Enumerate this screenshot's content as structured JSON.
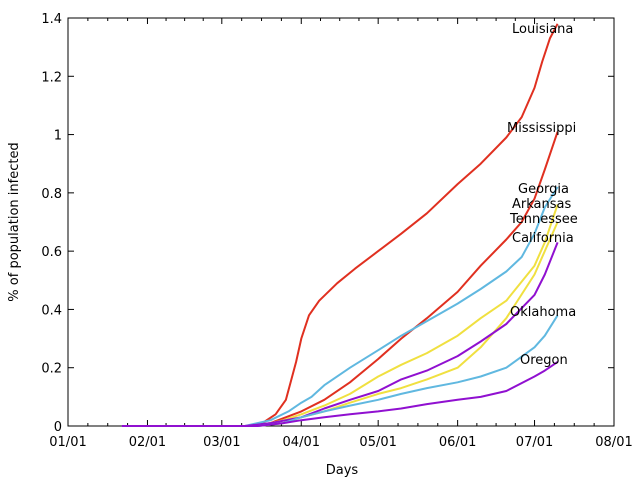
{
  "chart_data": {
    "type": "line",
    "title": "",
    "xlabel": "Days",
    "ylabel": "% of population infected",
    "xlim": [
      "01/01",
      "08/01"
    ],
    "ylim": [
      0,
      1.4
    ],
    "x_ticks": [
      "01/01",
      "02/01",
      "03/01",
      "04/01",
      "05/01",
      "06/01",
      "07/01",
      "08/01"
    ],
    "y_ticks": [
      0,
      0.2,
      0.4,
      0.6,
      0.8,
      1,
      1.2,
      1.4
    ],
    "y_tick_labels": [
      "0",
      "0.2",
      "0.4",
      "0.6",
      "0.8",
      "1",
      "1.2",
      "1.4"
    ],
    "grid": false,
    "legend": "labels at line ends",
    "series": [
      {
        "name": "Louisiana",
        "color": "#e03020",
        "points": [
          [
            "01/22",
            0
          ],
          [
            "03/10",
            0
          ],
          [
            "03/16",
            0.005
          ],
          [
            "03/22",
            0.04
          ],
          [
            "03/26",
            0.09
          ],
          [
            "03/30",
            0.22
          ],
          [
            "04/01",
            0.3
          ],
          [
            "04/04",
            0.38
          ],
          [
            "04/08",
            0.43
          ],
          [
            "04/15",
            0.49
          ],
          [
            "04/22",
            0.54
          ],
          [
            "05/01",
            0.6
          ],
          [
            "05/10",
            0.66
          ],
          [
            "05/20",
            0.73
          ],
          [
            "06/01",
            0.83
          ],
          [
            "06/10",
            0.9
          ],
          [
            "06/20",
            0.99
          ],
          [
            "06/26",
            1.06
          ],
          [
            "07/01",
            1.16
          ],
          [
            "07/04",
            1.25
          ],
          [
            "07/07",
            1.33
          ],
          [
            "07/10",
            1.38
          ]
        ]
      },
      {
        "name": "Mississippi",
        "color": "#e03020",
        "points": [
          [
            "01/22",
            0
          ],
          [
            "03/12",
            0
          ],
          [
            "03/20",
            0.01
          ],
          [
            "04/01",
            0.05
          ],
          [
            "04/10",
            0.09
          ],
          [
            "04/20",
            0.15
          ],
          [
            "05/01",
            0.23
          ],
          [
            "05/10",
            0.3
          ],
          [
            "05/20",
            0.37
          ],
          [
            "06/01",
            0.46
          ],
          [
            "06/10",
            0.55
          ],
          [
            "06/20",
            0.64
          ],
          [
            "06/26",
            0.7
          ],
          [
            "07/01",
            0.78
          ],
          [
            "07/05",
            0.88
          ],
          [
            "07/10",
            1.01
          ]
        ]
      },
      {
        "name": "Georgia",
        "color": "#60b8e0",
        "points": [
          [
            "01/22",
            0
          ],
          [
            "03/10",
            0
          ],
          [
            "03/20",
            0.02
          ],
          [
            "03/27",
            0.05
          ],
          [
            "04/01",
            0.08
          ],
          [
            "04/05",
            0.1
          ],
          [
            "04/10",
            0.14
          ],
          [
            "04/20",
            0.2
          ],
          [
            "05/01",
            0.26
          ],
          [
            "05/10",
            0.31
          ],
          [
            "05/20",
            0.36
          ],
          [
            "06/01",
            0.42
          ],
          [
            "06/10",
            0.47
          ],
          [
            "06/20",
            0.53
          ],
          [
            "06/26",
            0.58
          ],
          [
            "07/01",
            0.66
          ],
          [
            "07/05",
            0.75
          ],
          [
            "07/10",
            0.82
          ]
        ]
      },
      {
        "name": "Arkansas",
        "color": "#f0e040",
        "points": [
          [
            "01/22",
            0
          ],
          [
            "03/15",
            0
          ],
          [
            "03/25",
            0.02
          ],
          [
            "04/01",
            0.04
          ],
          [
            "04/10",
            0.07
          ],
          [
            "04/20",
            0.11
          ],
          [
            "05/01",
            0.17
          ],
          [
            "05/10",
            0.21
          ],
          [
            "05/20",
            0.25
          ],
          [
            "06/01",
            0.31
          ],
          [
            "06/10",
            0.37
          ],
          [
            "06/20",
            0.43
          ],
          [
            "07/01",
            0.55
          ],
          [
            "07/05",
            0.63
          ],
          [
            "07/10",
            0.76
          ]
        ]
      },
      {
        "name": "Tennessee",
        "color": "#f0e040",
        "points": [
          [
            "01/22",
            0
          ],
          [
            "03/15",
            0
          ],
          [
            "03/25",
            0.01
          ],
          [
            "04/01",
            0.03
          ],
          [
            "04/10",
            0.05
          ],
          [
            "04/20",
            0.08
          ],
          [
            "05/01",
            0.11
          ],
          [
            "05/10",
            0.13
          ],
          [
            "05/20",
            0.16
          ],
          [
            "06/01",
            0.2
          ],
          [
            "06/10",
            0.27
          ],
          [
            "06/20",
            0.37
          ],
          [
            "07/01",
            0.52
          ],
          [
            "07/05",
            0.6
          ],
          [
            "07/10",
            0.7
          ]
        ]
      },
      {
        "name": "California",
        "color": "#9010d0",
        "points": [
          [
            "01/22",
            0
          ],
          [
            "03/10",
            0
          ],
          [
            "03/20",
            0.01
          ],
          [
            "04/01",
            0.03
          ],
          [
            "04/10",
            0.06
          ],
          [
            "04/20",
            0.09
          ],
          [
            "05/01",
            0.12
          ],
          [
            "05/10",
            0.16
          ],
          [
            "05/20",
            0.19
          ],
          [
            "06/01",
            0.24
          ],
          [
            "06/10",
            0.29
          ],
          [
            "06/20",
            0.35
          ],
          [
            "07/01",
            0.45
          ],
          [
            "07/05",
            0.52
          ],
          [
            "07/10",
            0.63
          ]
        ]
      },
      {
        "name": "Oklahoma",
        "color": "#60b8e0",
        "points": [
          [
            "01/22",
            0
          ],
          [
            "03/15",
            0
          ],
          [
            "03/25",
            0.01
          ],
          [
            "04/01",
            0.03
          ],
          [
            "04/10",
            0.05
          ],
          [
            "04/20",
            0.07
          ],
          [
            "05/01",
            0.09
          ],
          [
            "05/10",
            0.11
          ],
          [
            "05/20",
            0.13
          ],
          [
            "06/01",
            0.15
          ],
          [
            "06/10",
            0.17
          ],
          [
            "06/20",
            0.2
          ],
          [
            "07/01",
            0.27
          ],
          [
            "07/05",
            0.31
          ],
          [
            "07/10",
            0.38
          ]
        ]
      },
      {
        "name": "Oregon",
        "color": "#9010d0",
        "points": [
          [
            "01/22",
            0
          ],
          [
            "03/15",
            0
          ],
          [
            "03/25",
            0.01
          ],
          [
            "04/01",
            0.02
          ],
          [
            "04/10",
            0.03
          ],
          [
            "04/20",
            0.04
          ],
          [
            "05/01",
            0.05
          ],
          [
            "05/10",
            0.06
          ],
          [
            "05/20",
            0.075
          ],
          [
            "06/01",
            0.09
          ],
          [
            "06/10",
            0.1
          ],
          [
            "06/20",
            0.12
          ],
          [
            "07/01",
            0.17
          ],
          [
            "07/05",
            0.19
          ],
          [
            "07/10",
            0.22
          ]
        ]
      }
    ]
  }
}
